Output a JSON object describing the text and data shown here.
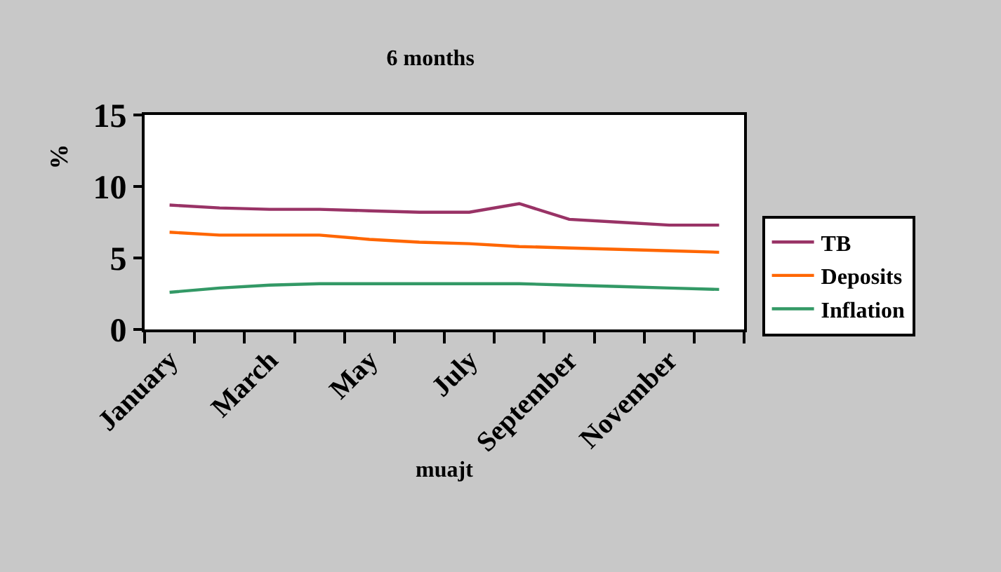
{
  "chart_data": {
    "type": "line",
    "title": "6 months",
    "xlabel": "muajt",
    "ylabel": "%",
    "categories": [
      "January",
      null,
      "March",
      null,
      "May",
      null,
      "July",
      null,
      "September",
      null,
      "November",
      null
    ],
    "series": [
      {
        "name": "TB",
        "color": "#993366",
        "values": [
          8.7,
          8.5,
          8.4,
          8.4,
          8.3,
          8.2,
          8.2,
          8.8,
          7.7,
          7.5,
          7.3,
          7.3
        ]
      },
      {
        "name": "Deposits",
        "color": "#ff6600",
        "values": [
          6.8,
          6.6,
          6.6,
          6.6,
          6.3,
          6.1,
          6.0,
          5.8,
          5.7,
          5.6,
          5.5,
          5.4
        ]
      },
      {
        "name": "Inflation",
        "color": "#339966",
        "values": [
          2.6,
          2.9,
          3.1,
          3.2,
          3.2,
          3.2,
          3.2,
          3.2,
          3.1,
          3.0,
          2.9,
          2.8
        ]
      }
    ],
    "ylim": [
      0,
      15
    ],
    "yticks": [
      0,
      5,
      10,
      15
    ],
    "legend": "right",
    "marker": "none",
    "line_style": "solid"
  }
}
